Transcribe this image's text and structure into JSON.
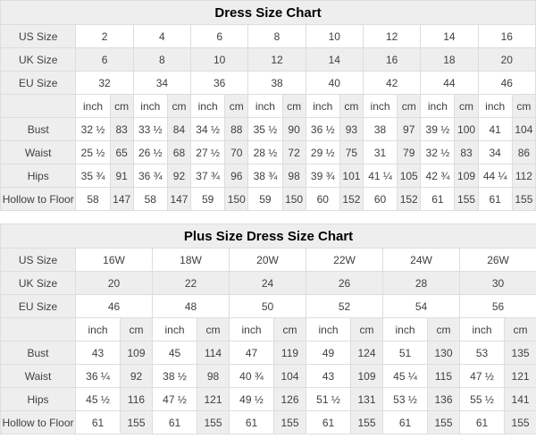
{
  "colors": {
    "header_bg": "#eeeeee",
    "cell_bg": "#ffffff",
    "border": "#dddddd",
    "text": "#404040",
    "title_text": "#000000"
  },
  "tables": [
    {
      "title": "Dress Size Chart",
      "size_rows": [
        {
          "label": "US Size",
          "values": [
            "2",
            "4",
            "6",
            "8",
            "10",
            "12",
            "14",
            "16"
          ]
        },
        {
          "label": "UK Size",
          "values": [
            "6",
            "8",
            "10",
            "12",
            "14",
            "16",
            "18",
            "20"
          ]
        },
        {
          "label": "EU Size",
          "values": [
            "32",
            "34",
            "36",
            "38",
            "40",
            "42",
            "44",
            "46"
          ]
        }
      ],
      "units": {
        "inch": "inch",
        "cm": "cm"
      },
      "measure_rows": [
        {
          "label": "Bust",
          "pairs": [
            [
              "32 ½",
              "83"
            ],
            [
              "33 ½",
              "84"
            ],
            [
              "34 ½",
              "88"
            ],
            [
              "35 ½",
              "90"
            ],
            [
              "36 ½",
              "93"
            ],
            [
              "38",
              "97"
            ],
            [
              "39 ½",
              "100"
            ],
            [
              "41",
              "104"
            ]
          ]
        },
        {
          "label": "Waist",
          "pairs": [
            [
              "25 ½",
              "65"
            ],
            [
              "26 ½",
              "68"
            ],
            [
              "27 ½",
              "70"
            ],
            [
              "28 ½",
              "72"
            ],
            [
              "29 ½",
              "75"
            ],
            [
              "31",
              "79"
            ],
            [
              "32 ½",
              "83"
            ],
            [
              "34",
              "86"
            ]
          ]
        },
        {
          "label": "Hips",
          "pairs": [
            [
              "35 ¾",
              "91"
            ],
            [
              "36 ¾",
              "92"
            ],
            [
              "37 ¾",
              "96"
            ],
            [
              "38 ¾",
              "98"
            ],
            [
              "39 ¾",
              "101"
            ],
            [
              "41 ¼",
              "105"
            ],
            [
              "42 ¾",
              "109"
            ],
            [
              "44 ¼",
              "112"
            ]
          ]
        },
        {
          "label": "Hollow to Floor",
          "pairs": [
            [
              "58",
              "147"
            ],
            [
              "58",
              "147"
            ],
            [
              "59",
              "150"
            ],
            [
              "59",
              "150"
            ],
            [
              "60",
              "152"
            ],
            [
              "60",
              "152"
            ],
            [
              "61",
              "155"
            ],
            [
              "61",
              "155"
            ]
          ]
        }
      ]
    },
    {
      "title": "Plus Size Dress Size Chart",
      "size_rows": [
        {
          "label": "US Size",
          "values": [
            "16W",
            "18W",
            "20W",
            "22W",
            "24W",
            "26W"
          ]
        },
        {
          "label": "UK Size",
          "values": [
            "20",
            "22",
            "24",
            "26",
            "28",
            "30"
          ]
        },
        {
          "label": "EU Size",
          "values": [
            "46",
            "48",
            "50",
            "52",
            "54",
            "56"
          ]
        }
      ],
      "units": {
        "inch": "inch",
        "cm": "cm"
      },
      "measure_rows": [
        {
          "label": "Bust",
          "pairs": [
            [
              "43",
              "109"
            ],
            [
              "45",
              "114"
            ],
            [
              "47",
              "119"
            ],
            [
              "49",
              "124"
            ],
            [
              "51",
              "130"
            ],
            [
              "53",
              "135"
            ]
          ]
        },
        {
          "label": "Waist",
          "pairs": [
            [
              "36 ¼",
              "92"
            ],
            [
              "38 ½",
              "98"
            ],
            [
              "40 ¾",
              "104"
            ],
            [
              "43",
              "109"
            ],
            [
              "45 ¼",
              "115"
            ],
            [
              "47 ½",
              "121"
            ]
          ]
        },
        {
          "label": "Hips",
          "pairs": [
            [
              "45 ½",
              "116"
            ],
            [
              "47 ½",
              "121"
            ],
            [
              "49 ½",
              "126"
            ],
            [
              "51 ½",
              "131"
            ],
            [
              "53 ½",
              "136"
            ],
            [
              "55 ½",
              "141"
            ]
          ]
        },
        {
          "label": "Hollow to Floor",
          "pairs": [
            [
              "61",
              "155"
            ],
            [
              "61",
              "155"
            ],
            [
              "61",
              "155"
            ],
            [
              "61",
              "155"
            ],
            [
              "61",
              "155"
            ],
            [
              "61",
              "155"
            ]
          ]
        }
      ]
    }
  ]
}
